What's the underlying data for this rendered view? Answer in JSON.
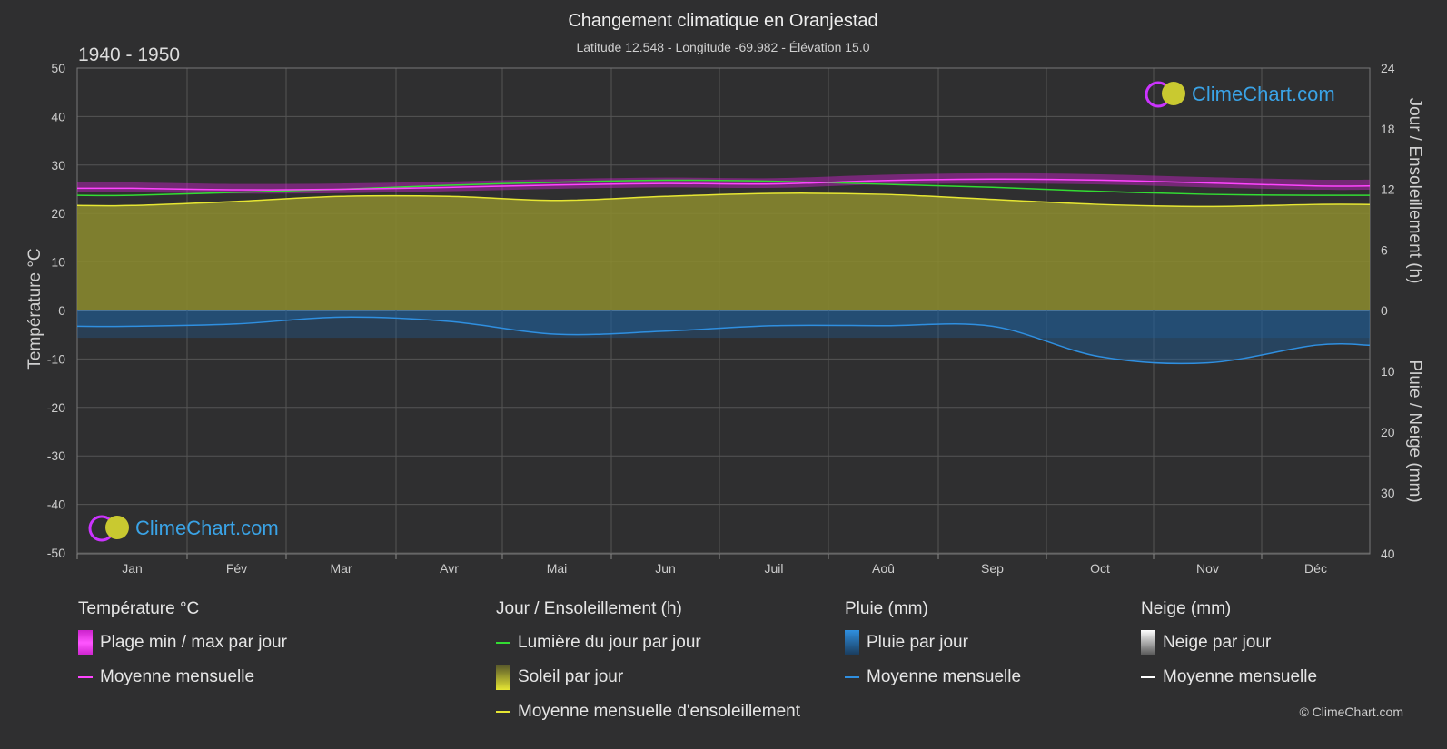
{
  "title": "Changement climatique en Oranjestad",
  "subtitle": "Latitude 12.548 - Longitude -69.982 - Élévation 15.0",
  "period": "1940 - 1950",
  "brand": "ClimeChart.com",
  "copyright": "© ClimeChart.com",
  "axes": {
    "left_title": "Température °C",
    "right_top_title": "Jour / Ensoleillement (h)",
    "right_bottom_title": "Pluie / Neige (mm)",
    "left_ticks": [
      "50",
      "40",
      "30",
      "20",
      "10",
      "0",
      "-10",
      "-20",
      "-30",
      "-40",
      "-50"
    ],
    "right_top_ticks": [
      "24",
      "18",
      "12",
      "6",
      "0"
    ],
    "right_bottom_ticks": [
      "10",
      "20",
      "30",
      "40"
    ]
  },
  "legend": {
    "temp": {
      "header": "Température °C",
      "range_label": "Plage min / max par jour",
      "mean_label": "Moyenne mensuelle"
    },
    "sun": {
      "header": "Jour / Ensoleillement (h)",
      "daylight_label": "Lumière du jour par jour",
      "sun_label": "Soleil par jour",
      "mean_label": "Moyenne mensuelle d'ensoleillement"
    },
    "rain": {
      "header": "Pluie (mm)",
      "daily_label": "Pluie par jour",
      "mean_label": "Moyenne mensuelle"
    },
    "snow": {
      "header": "Neige (mm)",
      "daily_label": "Neige par jour",
      "mean_label": "Moyenne mensuelle"
    }
  },
  "colors": {
    "background": "#2f2f30",
    "temp_mean": "#ff44ff",
    "temp_range": "#cc22cc",
    "daylight": "#33dd33",
    "sunshine_fill": "#8c8c2e",
    "sunshine_mean": "#e6e633",
    "rain_fill": "#1f5f9a",
    "rain_mean": "#2f8fe0",
    "snow_mean": "#ffffff"
  },
  "chart_data": {
    "type": "line",
    "categories": [
      "Jan",
      "Fév",
      "Mar",
      "Avr",
      "Mai",
      "Jun",
      "Juil",
      "Aoû",
      "Sep",
      "Oct",
      "Nov",
      "Déc"
    ],
    "temperature_ylim": [
      -50,
      50
    ],
    "sunshine_ylim_hours": [
      0,
      24
    ],
    "precip_ylim_mm": [
      0,
      40
    ],
    "grid": true,
    "series": [
      {
        "name": "Moyenne mensuelle",
        "key": "temp_mean",
        "unit": "°C",
        "values": [
          25.2,
          24.9,
          25.0,
          25.4,
          25.9,
          26.2,
          26.1,
          26.8,
          27.1,
          26.9,
          26.3,
          25.7
        ]
      },
      {
        "name": "Plage min / max par jour",
        "key": "temp_min",
        "unit": "°C",
        "values": [
          24.4,
          24.1,
          24.2,
          24.6,
          25.1,
          25.4,
          25.3,
          26.0,
          26.2,
          26.0,
          25.4,
          24.9
        ]
      },
      {
        "name": "Plage min / max par jour",
        "key": "temp_max",
        "unit": "°C",
        "values": [
          26.4,
          26.1,
          26.2,
          26.6,
          27.1,
          27.4,
          27.3,
          28.0,
          28.3,
          28.1,
          27.5,
          27.0
        ]
      },
      {
        "name": "Lumière du jour par jour",
        "key": "daylight",
        "unit": "h",
        "values": [
          11.4,
          11.7,
          12.0,
          12.4,
          12.7,
          12.9,
          12.8,
          12.5,
          12.2,
          11.8,
          11.5,
          11.4
        ]
      },
      {
        "name": "Moyenne mensuelle d'ensoleillement",
        "key": "sunshine",
        "unit": "h",
        "values": [
          10.4,
          10.8,
          11.3,
          11.3,
          10.9,
          11.3,
          11.6,
          11.5,
          11.0,
          10.5,
          10.3,
          10.5
        ]
      },
      {
        "name": "Moyenne mensuelle",
        "key": "rain_mean",
        "unit": "mm",
        "values": [
          2.6,
          2.2,
          1.1,
          1.8,
          3.9,
          3.4,
          2.5,
          2.5,
          2.6,
          7.6,
          8.6,
          5.7
        ]
      },
      {
        "name": "Moyenne mensuelle",
        "key": "snow_mean",
        "unit": "mm",
        "values": [
          0,
          0,
          0,
          0,
          0,
          0,
          0,
          0,
          0,
          0,
          0,
          0
        ]
      }
    ]
  }
}
